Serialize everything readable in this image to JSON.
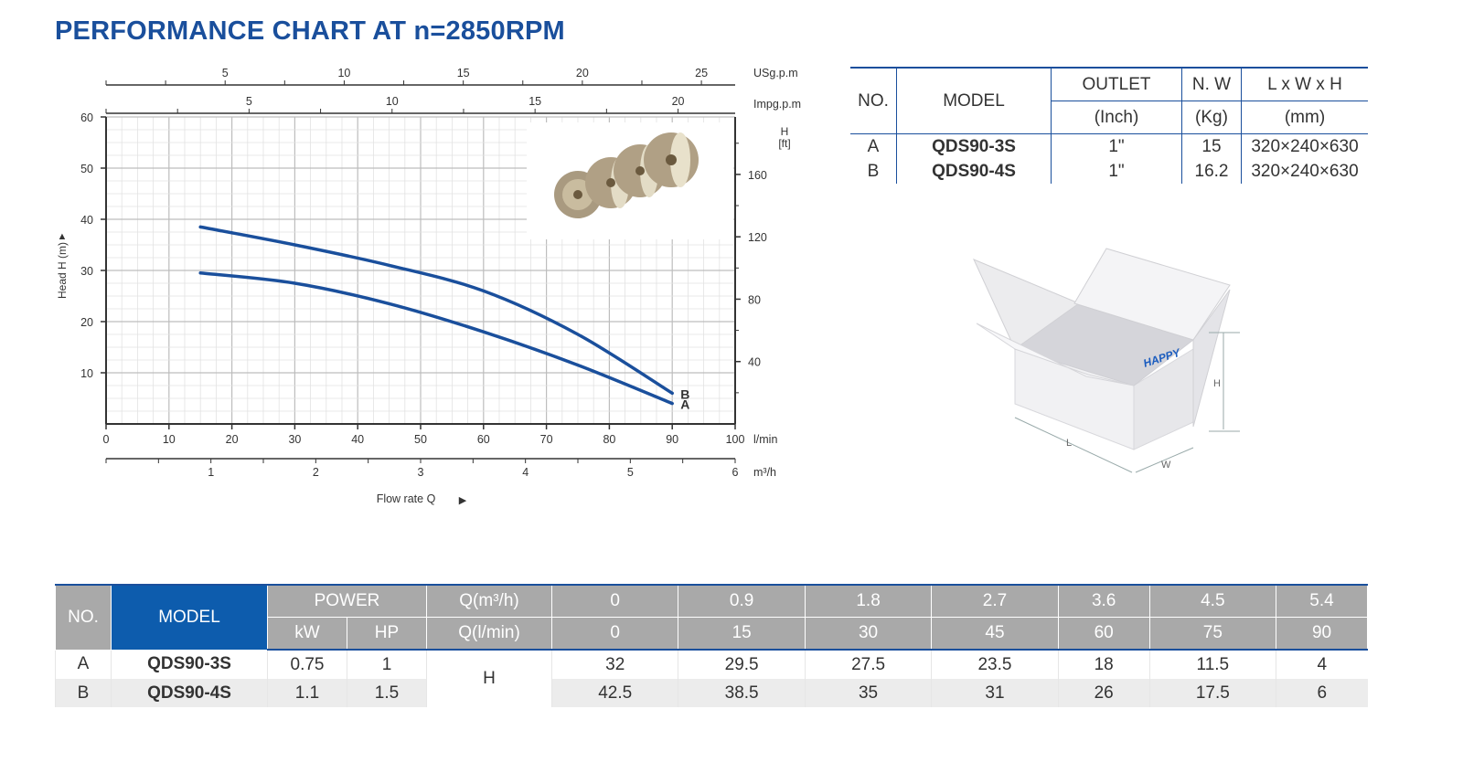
{
  "title": "PERFORMANCE CHART AT n=2850RPM",
  "chart_data": {
    "type": "line",
    "x": [
      15,
      30,
      45,
      60,
      75,
      90
    ],
    "xlabel": "Flow rate Q",
    "xunit": "l/min",
    "xlim": [
      0,
      100
    ],
    "xticks": [
      "0",
      "10",
      "20",
      "30",
      "40",
      "50",
      "60",
      "70",
      "80",
      "90",
      "100"
    ],
    "ylabel": "Head H (m)",
    "ylim": [
      0,
      60
    ],
    "yticks": [
      "10",
      "20",
      "30",
      "40",
      "50",
      "60"
    ],
    "right_axis": {
      "label": "H",
      "unit": "[ft]",
      "ticks": [
        "40",
        "80",
        "120",
        "160"
      ]
    },
    "top_axis_usgpm": {
      "unit": "USg.p.m",
      "ticks": [
        "5",
        "10",
        "15",
        "20",
        "25"
      ]
    },
    "top_axis_impgpm": {
      "unit": "Impg.p.m",
      "ticks": [
        "5",
        "10",
        "15",
        "20"
      ]
    },
    "bottom_axis_m3h": {
      "unit": "m³/h",
      "ticks": [
        "1",
        "2",
        "3",
        "4",
        "5",
        "6"
      ]
    },
    "series": [
      {
        "name": "A",
        "values": [
          29.5,
          27.5,
          23.5,
          18,
          11.5,
          4
        ]
      },
      {
        "name": "B",
        "values": [
          38.5,
          35,
          31,
          26,
          17.5,
          6
        ]
      }
    ],
    "line_color": "#1a4f9c",
    "grid": true
  },
  "spec_table": {
    "headers": {
      "no": "NO.",
      "model": "MODEL",
      "outlet": "OUTLET",
      "outlet_unit": "(Inch)",
      "nw": "N. W",
      "nw_unit": "(Kg)",
      "dims": "L x W x H",
      "dims_unit": "(mm)"
    },
    "rows": [
      {
        "no": "A",
        "model": "QDS90-3S",
        "outlet": "1\"",
        "nw": "15",
        "dims": "320×240×630"
      },
      {
        "no": "B",
        "model": "QDS90-4S",
        "outlet": "1\"",
        "nw": "16.2",
        "dims": "320×240×630"
      }
    ]
  },
  "box_labels": {
    "brand": "HAPPY",
    "h": "H",
    "l": "L",
    "w": "W"
  },
  "perf_table": {
    "no": "NO.",
    "model": "MODEL",
    "power": "POWER",
    "kw": "kW",
    "hp": "HP",
    "q_m3h_label": "Q(m³/h)",
    "q_lmin_label": "Q(l/min)",
    "q_m3h": [
      "0",
      "0.9",
      "1.8",
      "2.7",
      "3.6",
      "4.5",
      "5.4"
    ],
    "q_lmin": [
      "0",
      "15",
      "30",
      "45",
      "60",
      "75",
      "90"
    ],
    "h_label": "H",
    "rows": [
      {
        "no": "A",
        "model": "QDS90-3S",
        "kw": "0.75",
        "hp": "1",
        "h": [
          "32",
          "29.5",
          "27.5",
          "23.5",
          "18",
          "11.5",
          "4"
        ]
      },
      {
        "no": "B",
        "model": "QDS90-4S",
        "kw": "1.1",
        "hp": "1.5",
        "h": [
          "42.5",
          "38.5",
          "35",
          "31",
          "26",
          "17.5",
          "6"
        ]
      }
    ]
  },
  "colors": {
    "brand_blue": "#1a4f9c",
    "header_gray": "#a9a9a9",
    "model_blue": "#0d5cad"
  }
}
